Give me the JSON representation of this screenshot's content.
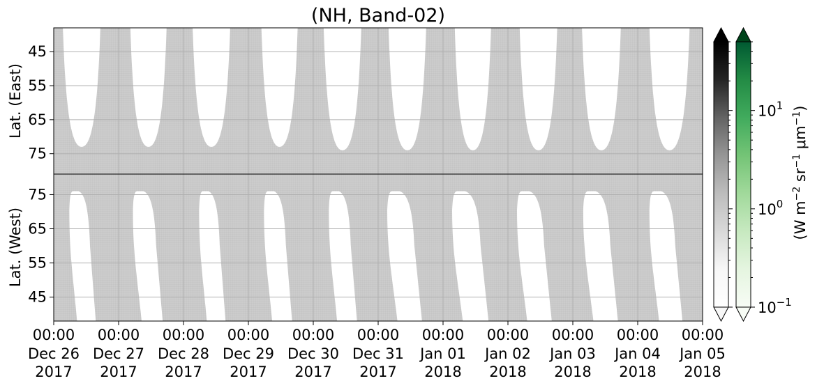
{
  "chart_data": {
    "type": "heatmap",
    "title": "(NH, Band-02)",
    "panels": [
      {
        "name": "East",
        "ylabel": "Lat. (East)",
        "yticks": [
          45,
          55,
          65,
          75
        ],
        "y_direction": "latitude increases downward",
        "ylim": [
          38,
          81
        ],
        "coverage_color": "#cccccc",
        "night_gaps": [
          {
            "day": 0,
            "start": 0.14,
            "end": 0.72,
            "min_lat": 73
          },
          {
            "day": 1,
            "start": 0.18,
            "end": 0.74,
            "min_lat": 73
          },
          {
            "day": 2,
            "start": 0.14,
            "end": 0.72,
            "min_lat": 73
          },
          {
            "day": 3,
            "start": 0.2,
            "end": 0.76,
            "min_lat": 73
          },
          {
            "day": 4,
            "start": 0.16,
            "end": 0.74,
            "min_lat": 74
          },
          {
            "day": 5,
            "start": 0.16,
            "end": 0.74,
            "min_lat": 74
          },
          {
            "day": 6,
            "start": 0.18,
            "end": 0.74,
            "min_lat": 74
          },
          {
            "day": 7,
            "start": 0.18,
            "end": 0.76,
            "min_lat": 74
          },
          {
            "day": 8,
            "start": 0.14,
            "end": 0.74,
            "min_lat": 74
          },
          {
            "day": 9,
            "start": 0.18,
            "end": 0.8,
            "min_lat": 74
          }
        ]
      },
      {
        "name": "West",
        "ylabel": "Lat. (West)",
        "yticks": [
          75,
          65,
          55,
          45
        ],
        "y_direction": "latitude decreases downward",
        "ylim": [
          81,
          38
        ],
        "coverage_color": "#cccccc",
        "night_gaps": [
          {
            "day": 0,
            "start": 0.24,
            "end": 0.56,
            "max_lat": 76
          },
          {
            "day": 1,
            "start": 0.22,
            "end": 0.58,
            "max_lat": 76
          },
          {
            "day": 2,
            "start": 0.24,
            "end": 0.56,
            "max_lat": 76
          },
          {
            "day": 3,
            "start": 0.24,
            "end": 0.58,
            "max_lat": 76
          },
          {
            "day": 4,
            "start": 0.24,
            "end": 0.58,
            "max_lat": 76
          },
          {
            "day": 5,
            "start": 0.14,
            "end": 0.56,
            "max_lat": 76
          },
          {
            "day": 6,
            "start": 0.14,
            "end": 0.58,
            "max_lat": 76
          },
          {
            "day": 7,
            "start": 0.14,
            "end": 0.56,
            "max_lat": 76
          },
          {
            "day": 8,
            "start": 0.16,
            "end": 0.58,
            "max_lat": 76
          },
          {
            "day": 9,
            "start": 0.18,
            "end": 0.58,
            "max_lat": 76
          }
        ]
      }
    ],
    "xticks": [
      {
        "time": "00:00",
        "date": "Dec 26",
        "year": "2017"
      },
      {
        "time": "00:00",
        "date": "Dec 27",
        "year": "2017"
      },
      {
        "time": "00:00",
        "date": "Dec 28",
        "year": "2017"
      },
      {
        "time": "00:00",
        "date": "Dec 29",
        "year": "2017"
      },
      {
        "time": "00:00",
        "date": "Dec 30",
        "year": "2017"
      },
      {
        "time": "00:00",
        "date": "Dec 31",
        "year": "2017"
      },
      {
        "time": "00:00",
        "date": "Jan 01",
        "year": "2018"
      },
      {
        "time": "00:00",
        "date": "Jan 02",
        "year": "2018"
      },
      {
        "time": "00:00",
        "date": "Jan 03",
        "year": "2018"
      },
      {
        "time": "00:00",
        "date": "Jan 04",
        "year": "2018"
      },
      {
        "time": "00:00",
        "date": "Jan 05",
        "year": "2018"
      }
    ],
    "grid": true,
    "colorbars": [
      {
        "name": "gray",
        "colormap": "Greys",
        "extend": "both",
        "low_color": "#f7f7f7",
        "high_color": "#000000"
      },
      {
        "name": "green",
        "colormap": "Greens",
        "extend": "both",
        "low_color": "#f7fcf5",
        "high_color": "#00441b"
      }
    ],
    "colorbar_scale": "log",
    "colorbar_range": [
      0.1,
      50
    ],
    "colorbar_ticks": [
      {
        "value": 0.1,
        "base": "10",
        "exp": "−1"
      },
      {
        "value": 1,
        "base": "10",
        "exp": "0"
      },
      {
        "value": 10,
        "base": "10",
        "exp": "1"
      }
    ],
    "colorbar_label": "(W m⁻² sr⁻¹ μm⁻¹)"
  }
}
